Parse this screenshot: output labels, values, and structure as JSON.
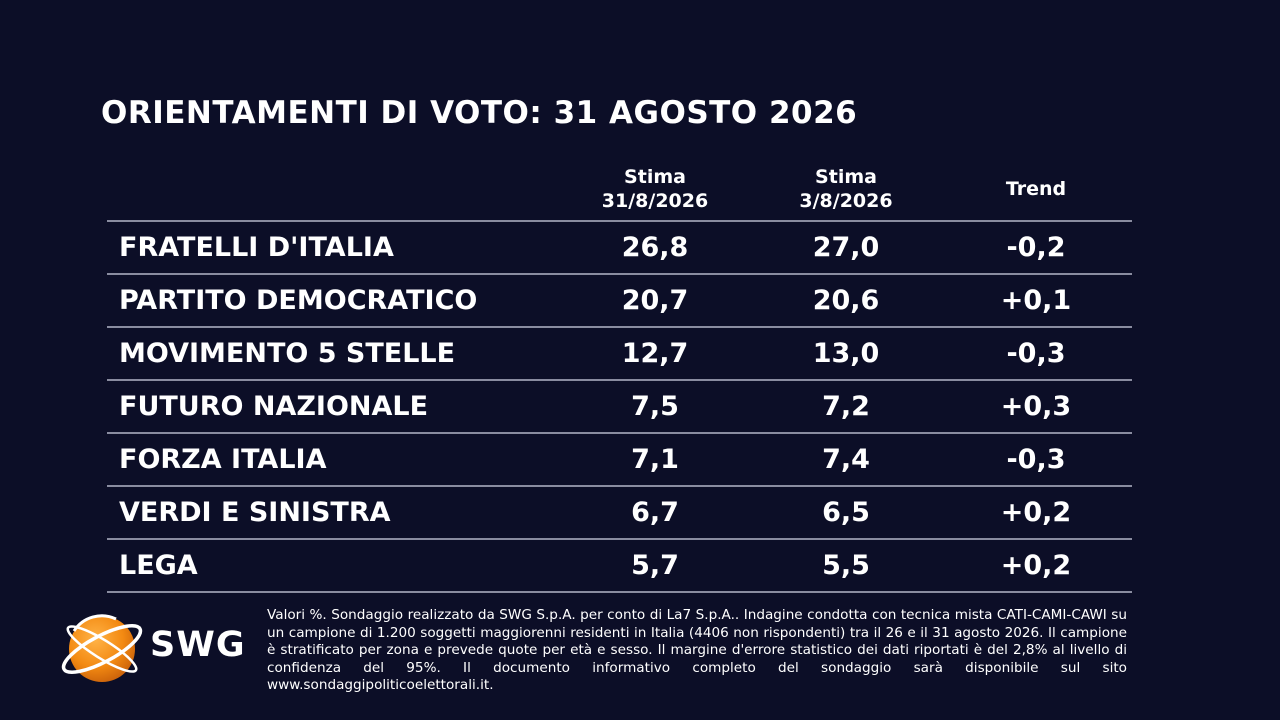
{
  "chart_data": {
    "type": "table",
    "title": "ORIENTAMENTI DI VOTO: 31 AGOSTO 2026",
    "columns": [
      {
        "line1": "Stima",
        "line2": "31/8/2026"
      },
      {
        "line1": "Stima",
        "line2": "3/8/2026"
      },
      {
        "line1": "Trend",
        "line2": ""
      }
    ],
    "rows": [
      {
        "party": "FRATELLI D'ITALIA",
        "current": "26,8",
        "previous": "27,0",
        "trend": "-0,2"
      },
      {
        "party": "PARTITO DEMOCRATICO",
        "current": "20,7",
        "previous": "20,6",
        "trend": "+0,1"
      },
      {
        "party": "MOVIMENTO 5 STELLE",
        "current": "12,7",
        "previous": "13,0",
        "trend": "-0,3"
      },
      {
        "party": "FUTURO NAZIONALE",
        "current": "7,5",
        "previous": "7,2",
        "trend": "+0,3"
      },
      {
        "party": "FORZA ITALIA",
        "current": "7,1",
        "previous": "7,4",
        "trend": "-0,3"
      },
      {
        "party": "VERDI E SINISTRA",
        "current": "6,7",
        "previous": "6,5",
        "trend": "+0,2"
      },
      {
        "party": "LEGA",
        "current": "5,7",
        "previous": "5,5",
        "trend": "+0,2"
      }
    ]
  },
  "brand": {
    "name": "SWG",
    "logo_icon": "orange-globe-icon",
    "accent_color": "#f39c1f"
  },
  "footnote": "Valori %. Sondaggio realizzato da SWG S.p.A. per conto di La7 S.p.A.. Indagine condotta con tecnica mista CATI-CAMI-CAWI su un campione di 1.200 soggetti maggiorenni residenti in Italia (4406 non rispondenti) tra il 26 e il 31 agosto 2026. Il campione è stratificato per zona e prevede quote per età e sesso. Il margine d'errore statistico dei dati riportati è del 2,8% al livello di confidenza del 95%. Il documento informativo completo del sondaggio sarà disponibile sul sito www.sondaggipoliticoelettorali.it."
}
